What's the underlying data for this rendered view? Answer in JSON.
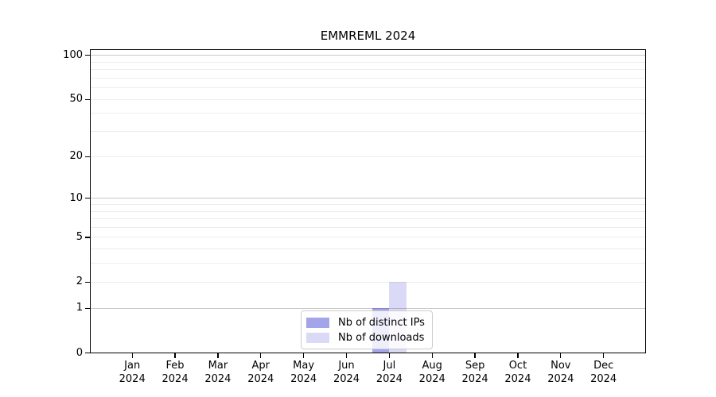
{
  "chart_data": {
    "type": "bar",
    "title": "EMMREML 2024",
    "categories": [
      "Jan",
      "Feb",
      "Mar",
      "Apr",
      "May",
      "Jun",
      "Jul",
      "Aug",
      "Sep",
      "Oct",
      "Nov",
      "Dec"
    ],
    "x_tick_second_line": "2024",
    "series": [
      {
        "name": "Nb of distinct IPs",
        "color": "rgba(34,34,204,0.41)",
        "color_hex_on_white": "#a4a4e8",
        "values": [
          0,
          0,
          0,
          0,
          0,
          0,
          1,
          0,
          0,
          0,
          0,
          0
        ]
      },
      {
        "name": "Nb of downloads",
        "color": "rgba(34,34,204,0.17)",
        "color_hex_on_white": "#d9d9f7",
        "values": [
          0,
          0,
          0,
          0,
          0,
          0,
          2,
          0,
          0,
          0,
          0,
          0
        ]
      }
    ],
    "yscale": "log10(1+y)",
    "ylim": [
      0,
      108.7
    ],
    "y_tick_labels": [
      0,
      1,
      2,
      5,
      10,
      20,
      50,
      100
    ],
    "y_gridlines_major": [
      1,
      10,
      100
    ],
    "y_gridlines_light": [
      2,
      5,
      20,
      50,
      3,
      4,
      6,
      7,
      8,
      9,
      30,
      40,
      60,
      70,
      80,
      90
    ],
    "legend_position": "lower center",
    "grid": true,
    "colors": {
      "background": "#ffffff",
      "grid_major": "#c9c9c9",
      "grid_light": "#ededed",
      "spine": "#000000",
      "text": "#000000",
      "legend_border": "#cccccc"
    }
  }
}
